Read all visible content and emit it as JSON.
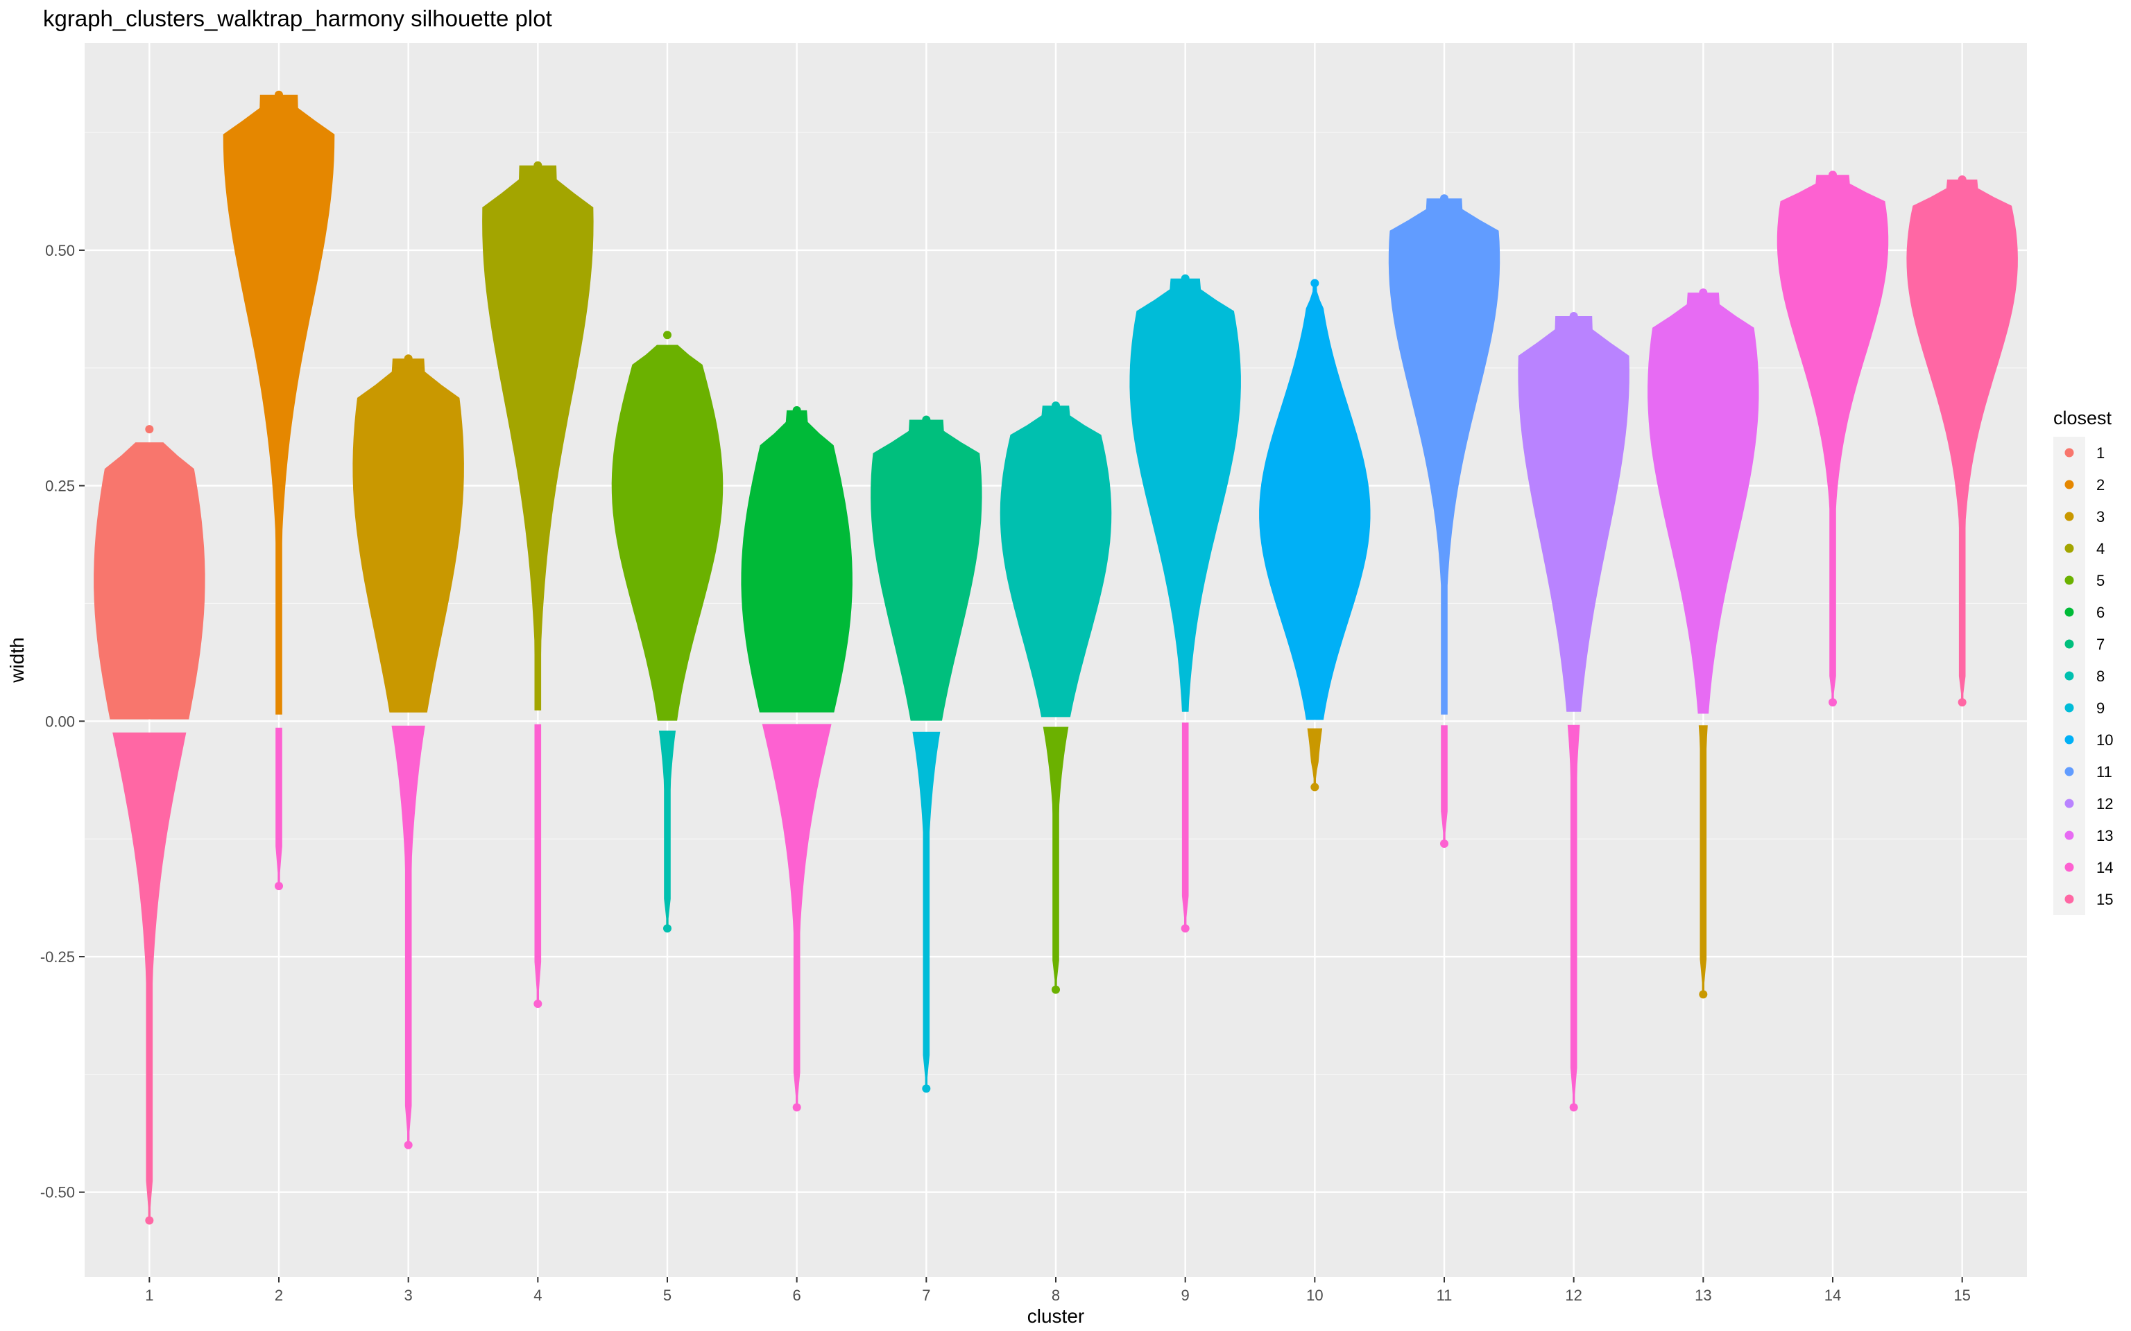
{
  "chart_data": {
    "type": "scatter",
    "subtype": "beeswarm",
    "title": "kgraph_clusters_walktrap_harmony silhouette plot",
    "xlabel": "cluster",
    "ylabel": "width",
    "categories": [
      "1",
      "2",
      "3",
      "4",
      "5",
      "6",
      "7",
      "8",
      "9",
      "10",
      "11",
      "12",
      "13",
      "14",
      "15"
    ],
    "yticks": [
      "-0.50",
      "-0.25",
      "0.00",
      "0.25",
      "0.50"
    ],
    "ytick_values": [
      -0.5,
      -0.25,
      0.0,
      0.25,
      0.5
    ],
    "ylim": [
      -0.59,
      0.72
    ],
    "grid": true,
    "legend": {
      "title": "closest",
      "position": "right",
      "entries": [
        "1",
        "2",
        "3",
        "4",
        "5",
        "6",
        "7",
        "8",
        "9",
        "10",
        "11",
        "12",
        "13",
        "14",
        "15"
      ],
      "colors": [
        "#F8766D",
        "#E58700",
        "#C99800",
        "#A3A500",
        "#6BB100",
        "#00BA38",
        "#00BF7D",
        "#00C0AF",
        "#00BCD8",
        "#00B0F6",
        "#619CFF",
        "#B983FF",
        "#E76BF3",
        "#FD61D1",
        "#FF67A4"
      ]
    },
    "series": [
      {
        "cluster": "1",
        "ymin": -0.53,
        "ymax": 0.31,
        "positive_closest": "1",
        "negative_closest": "15",
        "peak_y": 0.15
      },
      {
        "cluster": "2",
        "ymin": -0.175,
        "ymax": 0.665,
        "positive_closest": "2",
        "negative_closest": "14",
        "peak_y": 0.62
      },
      {
        "cluster": "3",
        "ymin": -0.45,
        "ymax": 0.385,
        "positive_closest": "3",
        "negative_closest": "14",
        "peak_y": 0.27
      },
      {
        "cluster": "4",
        "ymin": -0.3,
        "ymax": 0.59,
        "positive_closest": "4",
        "negative_closest": "14",
        "peak_y": 0.53
      },
      {
        "cluster": "5",
        "ymin": -0.22,
        "ymax": 0.41,
        "positive_closest": "5",
        "negative_closest": "8",
        "peak_y": 0.25
      },
      {
        "cluster": "6",
        "ymin": -0.41,
        "ymax": 0.33,
        "positive_closest": "6",
        "negative_closest": "14",
        "peak_y": 0.15
      },
      {
        "cluster": "7",
        "ymin": -0.39,
        "ymax": 0.32,
        "positive_closest": "7",
        "negative_closest": "9",
        "peak_y": 0.24
      },
      {
        "cluster": "8",
        "ymin": -0.285,
        "ymax": 0.335,
        "positive_closest": "8",
        "negative_closest": "5",
        "peak_y": 0.22
      },
      {
        "cluster": "9",
        "ymin": -0.22,
        "ymax": 0.47,
        "positive_closest": "9",
        "negative_closest": "14",
        "peak_y": 0.36
      },
      {
        "cluster": "10",
        "ymin": -0.07,
        "ymax": 0.465,
        "positive_closest": "10",
        "negative_closest": "3",
        "peak_y": 0.22
      },
      {
        "cluster": "11",
        "ymin": -0.13,
        "ymax": 0.555,
        "positive_closest": "11",
        "negative_closest": "14",
        "peak_y": 0.49
      },
      {
        "cluster": "12",
        "ymin": -0.41,
        "ymax": 0.43,
        "positive_closest": "12",
        "negative_closest": "14",
        "peak_y": 0.37
      },
      {
        "cluster": "13",
        "ymin": -0.29,
        "ymax": 0.455,
        "positive_closest": "13",
        "negative_closest": "3",
        "peak_y": 0.35
      },
      {
        "cluster": "14",
        "ymin": 0.02,
        "ymax": 0.58,
        "positive_closest": "14",
        "negative_closest": "14",
        "peak_y": 0.51
      },
      {
        "cluster": "15",
        "ymin": 0.02,
        "ymax": 0.575,
        "positive_closest": "15",
        "negative_closest": "15",
        "peak_y": 0.49
      }
    ]
  }
}
